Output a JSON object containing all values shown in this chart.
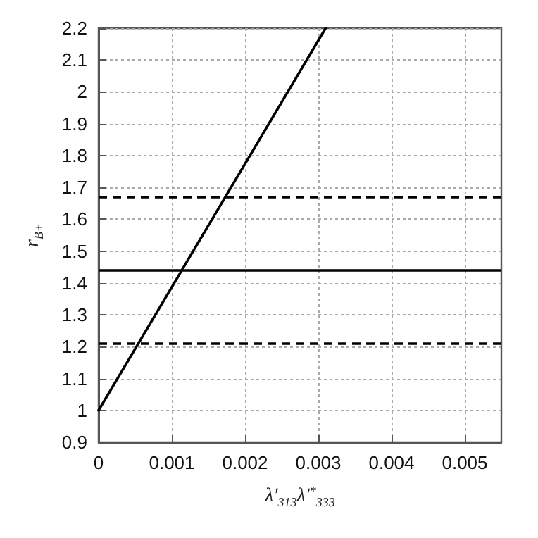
{
  "chart_data": {
    "type": "line",
    "xlabel": "λ′$_{313}$λ′$^{*}$$_{333}$",
    "ylabel": "r$_{B+}$",
    "xlim": [
      0,
      0.0055
    ],
    "xticks": [
      0,
      0.001,
      0.002,
      0.003,
      0.004,
      0.005
    ],
    "ylim": [
      0.9,
      2.2
    ],
    "yticks": [
      0.9,
      1,
      1.1,
      1.2,
      1.3,
      1.4,
      1.5,
      1.6,
      1.7,
      1.8,
      1.9,
      2,
      2.1,
      2.2
    ],
    "grid": true,
    "marker": "none",
    "line_style": "solid",
    "series": [
      {
        "color": "#000000",
        "x": [
          0,
          0.0031
        ],
        "values": [
          1,
          2.2
        ]
      }
    ],
    "ref_lines": [
      {
        "axis": "y",
        "value": 1.67,
        "color": "#000000",
        "line_style": "dashed"
      },
      {
        "axis": "y",
        "value": 1.44,
        "color": "#000000",
        "line_style": "solid"
      },
      {
        "axis": "y",
        "value": 1.21,
        "color": "#000000",
        "line_style": "dashed"
      }
    ]
  }
}
